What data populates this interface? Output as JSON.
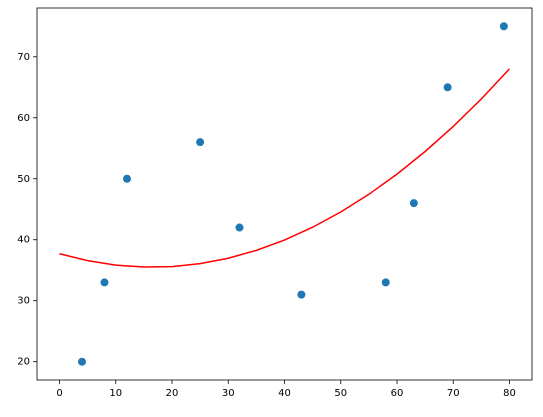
{
  "chart_data": {
    "type": "scatter",
    "series": [
      {
        "type": "scatter",
        "color": "#1f77b4",
        "x": [
          4,
          8,
          12,
          25,
          32,
          43,
          58,
          63,
          69,
          79
        ],
        "values": [
          20,
          33,
          50,
          56,
          42,
          31,
          33,
          46,
          65,
          75
        ]
      },
      {
        "type": "line",
        "color": "#ff0000",
        "x": [
          0,
          5,
          10,
          15,
          20,
          25,
          30,
          35,
          40,
          45,
          50,
          55,
          60,
          65,
          70,
          75,
          80
        ],
        "values": [
          37.7,
          36.57,
          35.84,
          35.52,
          35.6,
          36.08,
          36.97,
          38.26,
          39.95,
          42.05,
          44.55,
          47.45,
          50.76,
          54.47,
          58.58,
          63.1,
          68.02
        ]
      }
    ],
    "xlim": [
      -4,
      84
    ],
    "ylim": [
      17,
      78
    ],
    "xticks": [
      0,
      10,
      20,
      30,
      40,
      50,
      60,
      70,
      80
    ],
    "yticks": [
      20,
      30,
      40,
      50,
      60,
      70
    ]
  }
}
